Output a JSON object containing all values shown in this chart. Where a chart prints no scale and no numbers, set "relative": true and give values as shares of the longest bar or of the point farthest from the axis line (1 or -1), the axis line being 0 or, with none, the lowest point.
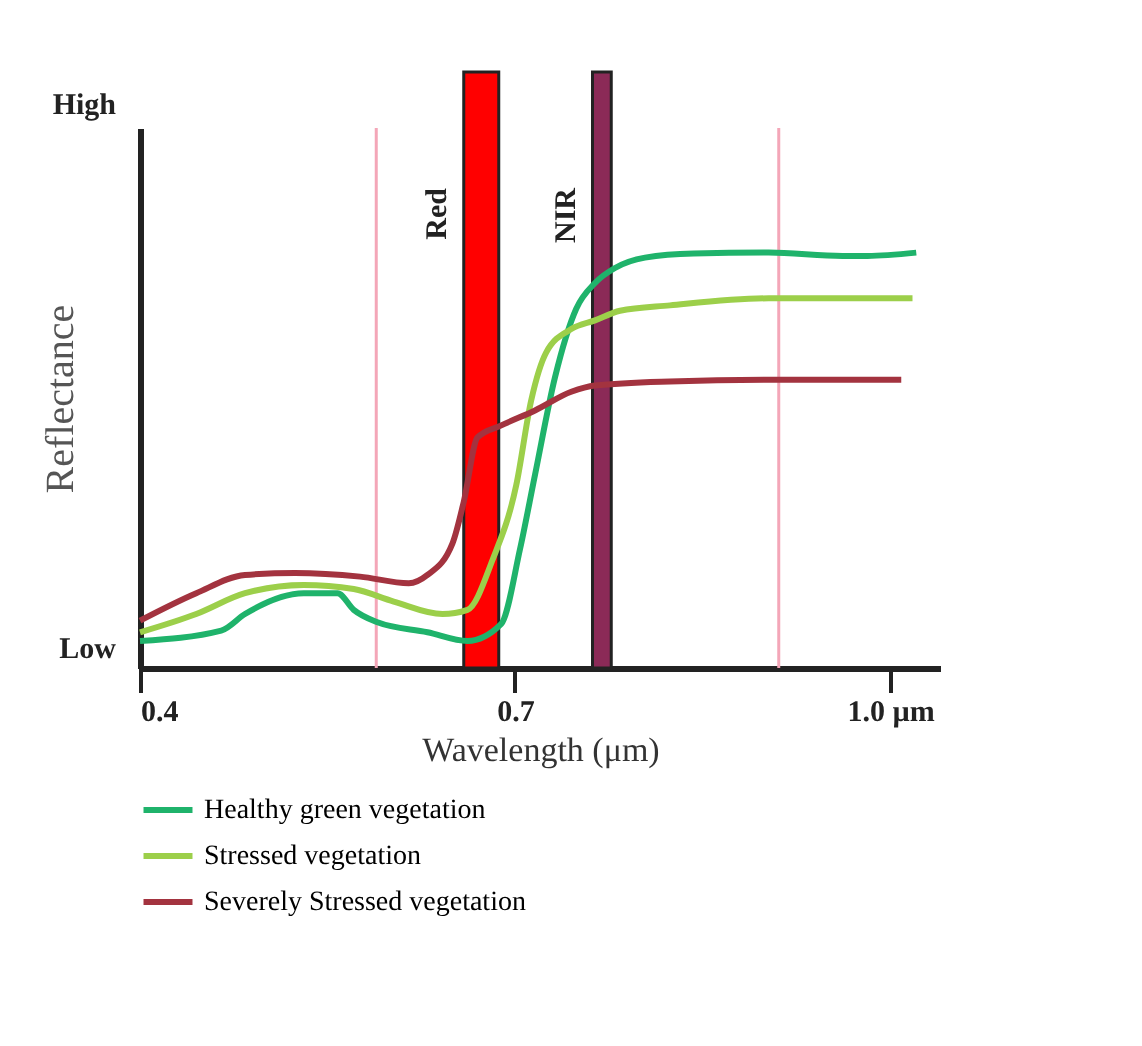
{
  "chart_data": {
    "type": "line",
    "relative": true,
    "xlabel": "Wavelength (μm)",
    "ylabel": "Reflectance",
    "annotations": [
      "High",
      "Low"
    ],
    "xlim": [
      0.4,
      1.04
    ],
    "xticks": [
      0.4,
      0.7,
      {
        "value": 1.0,
        "label": "1.0 µm"
      }
    ],
    "grid": false,
    "legend": "bottom",
    "marker": "none",
    "line_style": "solid",
    "series": [
      {
        "name": "Healthy green vegetation",
        "color": "#1fb36b",
        "x": [
          0.4,
          0.465,
          0.484,
          0.531,
          0.558,
          0.571,
          0.59,
          0.63,
          0.662,
          0.689,
          0.704,
          0.716,
          0.732,
          0.749,
          0.764,
          0.78,
          0.804,
          0.843,
          0.903,
          0.962,
          0.982,
          1.021
        ],
        "values": [
          0.065,
          0.09,
          0.13,
          0.18,
          0.18,
          0.14,
          0.11,
          0.086,
          0.065,
          0.106,
          0.286,
          0.465,
          0.7,
          0.865,
          0.927,
          0.963,
          0.988,
          0.998,
          1.0,
          0.992,
          0.992,
          1.0
        ]
      },
      {
        "name": "Stressed vegetation",
        "color": "#9ccf4a",
        "x": [
          0.4,
          0.445,
          0.484,
          0.531,
          0.571,
          0.603,
          0.642,
          0.662,
          0.682,
          0.701,
          0.713,
          0.725,
          0.745,
          0.764,
          0.784,
          0.824,
          0.903,
          1.018
        ],
        "values": [
          0.086,
          0.13,
          0.18,
          0.2,
          0.19,
          0.16,
          0.13,
          0.14,
          0.26,
          0.44,
          0.645,
          0.76,
          0.816,
          0.837,
          0.86,
          0.873,
          0.89,
          0.89
        ]
      },
      {
        "name": "Severely Stressed vegetation",
        "color": "#a3333f",
        "x": [
          0.4,
          0.445,
          0.484,
          0.524,
          0.576,
          0.615,
          0.63,
          0.65,
          0.659,
          0.67,
          0.689,
          0.716,
          0.745,
          0.764,
          0.824,
          0.903,
          1.009
        ],
        "values": [
          0.114,
          0.18,
          0.224,
          0.229,
          0.22,
          0.204,
          0.224,
          0.3,
          0.4,
          0.555,
          0.584,
          0.62,
          0.665,
          0.68,
          0.69,
          0.694,
          0.694
        ]
      }
    ],
    "bands": [
      {
        "axis": "x",
        "from": 0.659,
        "to": 0.687,
        "label": "Red",
        "color": "#ff0000"
      },
      {
        "axis": "x",
        "from": 0.762,
        "to": 0.777,
        "label": "NIR",
        "color": "#8b2a57"
      }
    ],
    "ref_lines": [
      {
        "axis": "x",
        "value": 0.589,
        "color": "#f4a6b8"
      },
      {
        "axis": "x",
        "value": 0.911,
        "color": "#f4a6b8"
      }
    ]
  }
}
